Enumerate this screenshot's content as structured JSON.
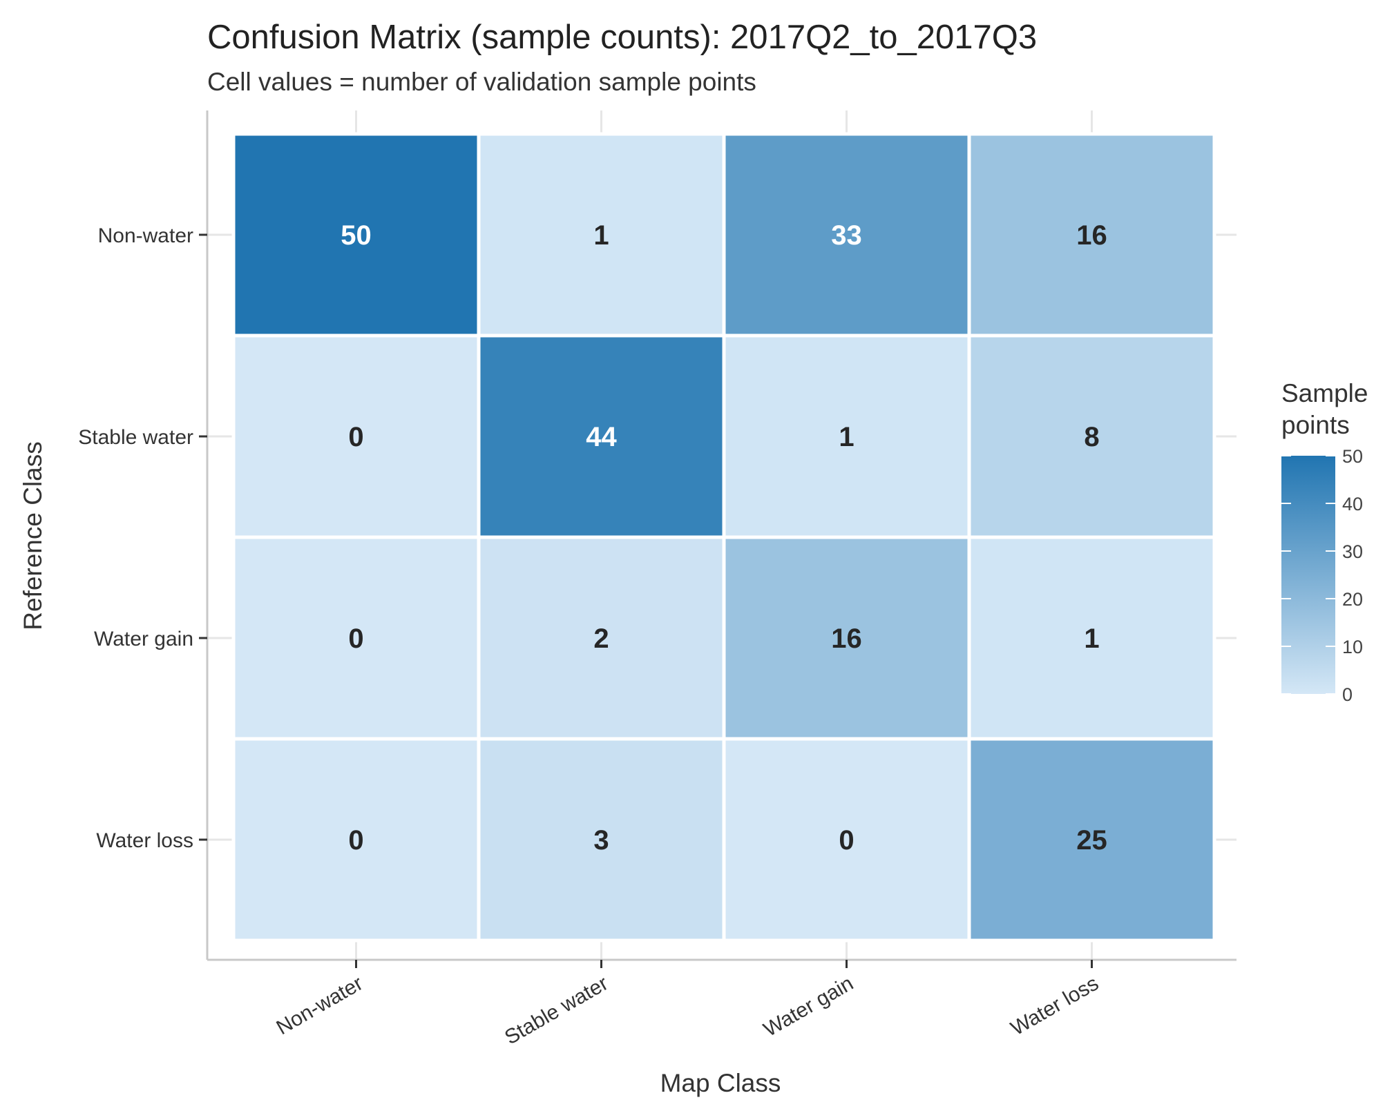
{
  "chart_data": {
    "type": "heatmap",
    "title": "Confusion Matrix (sample counts): 2017Q2_to_2017Q3",
    "subtitle": "Cell values = number of validation sample points",
    "xlabel": "Map Class",
    "ylabel": "Reference Class",
    "x_categories": [
      "Non-water",
      "Stable water",
      "Water gain",
      "Water loss"
    ],
    "y_categories": [
      "Non-water",
      "Stable water",
      "Water gain",
      "Water loss"
    ],
    "values": [
      [
        50,
        1,
        33,
        16
      ],
      [
        0,
        44,
        1,
        8
      ],
      [
        0,
        2,
        16,
        1
      ],
      [
        0,
        3,
        0,
        25
      ]
    ],
    "legend": {
      "title_lines": [
        "Sample",
        "points"
      ],
      "ticks": [
        "0",
        "10",
        "20",
        "30",
        "40",
        "50"
      ],
      "min": 0,
      "max": 50,
      "placement": "right"
    },
    "colors": {
      "low": "#d4e7f6",
      "high": "#2175b1",
      "grid": "#e6e6e6",
      "axis": "#c8c8c8",
      "label_dark": "#262626",
      "label_light": "#ffffff"
    },
    "grid": true
  }
}
